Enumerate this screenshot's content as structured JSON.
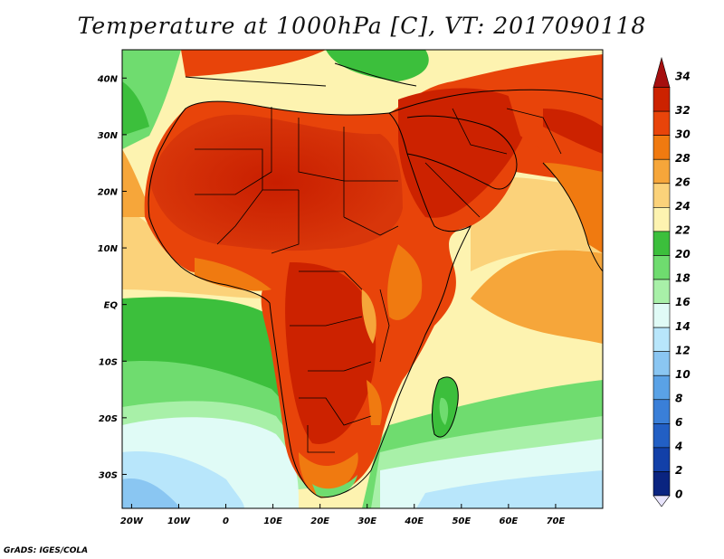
{
  "title": "Temperature at 1000hPa [C], VT: 2017090118",
  "credit": "GrADS: IGES/COLA",
  "map": {
    "lat_labels": [
      "40N",
      "30N",
      "20N",
      "10N",
      "EQ",
      "10S",
      "20S",
      "30S"
    ],
    "lon_labels": [
      "20W",
      "10W",
      "0",
      "10E",
      "20E",
      "30E",
      "40E",
      "50E",
      "60E",
      "70E"
    ],
    "lon_values": [
      -20,
      -10,
      0,
      10,
      20,
      30,
      40,
      50,
      60,
      70
    ],
    "lat_values": [
      40,
      30,
      20,
      10,
      0,
      -10,
      -20,
      -30
    ],
    "extent": {
      "lon_min": -22,
      "lon_max": 80,
      "lat_min": -36,
      "lat_max": 45
    }
  },
  "colorbar": {
    "labels": [
      "34",
      "32",
      "30",
      "28",
      "26",
      "24",
      "22",
      "20",
      "18",
      "16",
      "14",
      "12",
      "10",
      "8",
      "6",
      "4",
      "2",
      "0"
    ],
    "colors": [
      "#a50f0f",
      "#cc2200",
      "#e8440a",
      "#f07a10",
      "#f6a63a",
      "#fbd27a",
      "#fdf3b0",
      "#3cbf3c",
      "#6fdc6f",
      "#a8f0a8",
      "#e0fbf6",
      "#b8e6fb",
      "#8ac6f2",
      "#5aa2e6",
      "#3a7fd8",
      "#225fc4",
      "#1240a8",
      "#0a2480"
    ]
  }
}
